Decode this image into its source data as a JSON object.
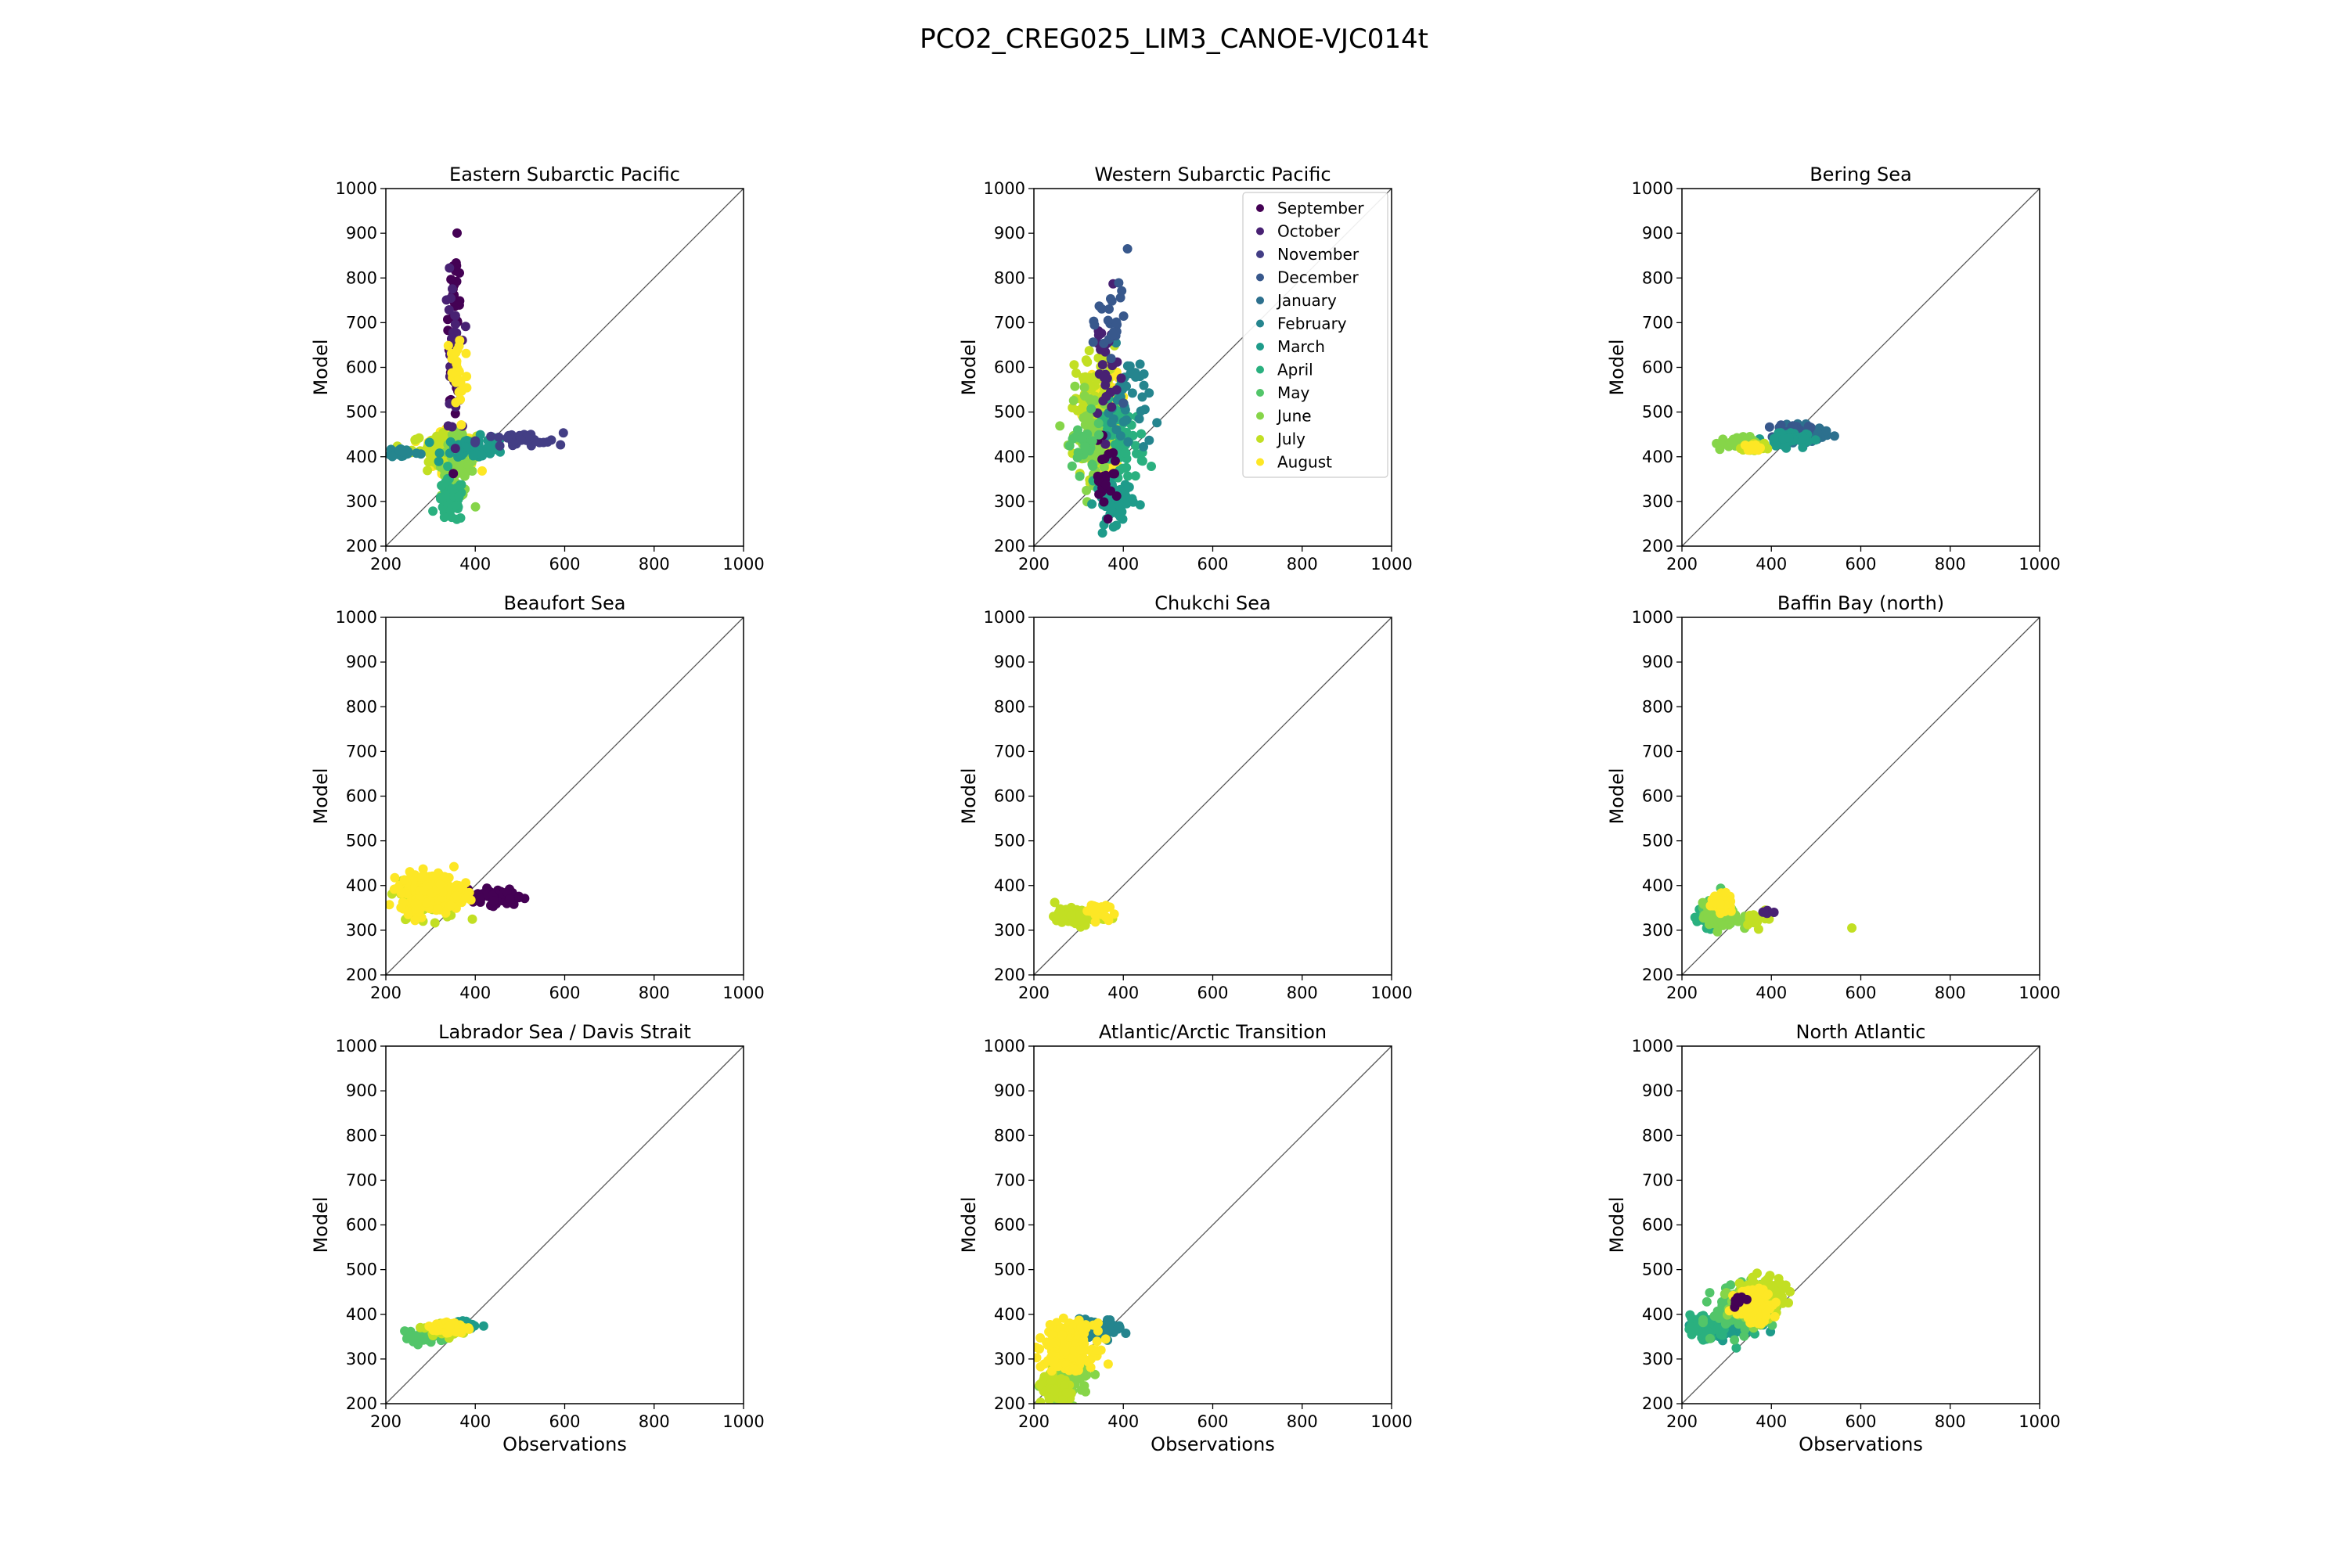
{
  "figure": {
    "title": "PCO2_CREG025_LIM3_CANOE-VJC014t"
  },
  "legend": {
    "entries": [
      "September",
      "October",
      "November",
      "December",
      "January",
      "February",
      "March",
      "April",
      "May",
      "June",
      "July",
      "August"
    ],
    "colors": [
      "#440154",
      "#481a6c",
      "#472f7d",
      "#414487",
      "#39568c",
      "#31688e",
      "#2a788e",
      "#23888e",
      "#1f988b",
      "#22a884",
      "#35b779",
      "#54c568"
    ]
  },
  "colors": {
    "September": "#440154",
    "October": "#482173",
    "November": "#433e85",
    "December": "#38588c",
    "January": "#2d708e",
    "February": "#25858e",
    "March": "#1e9b8a",
    "April": "#2ab07f",
    "May": "#52c569",
    "June": "#86d549",
    "July": "#c2df23",
    "August": "#fde725"
  },
  "chart_data": [
    {
      "type": "scatter",
      "title": "Eastern Subarctic Pacific",
      "xlabel": "",
      "ylabel": "Model",
      "xlim": [
        200,
        1000
      ],
      "ylim": [
        200,
        1000
      ],
      "xticks": [
        200,
        400,
        600,
        800,
        1000
      ],
      "yticks": [
        200,
        300,
        400,
        500,
        600,
        700,
        800,
        900,
        1000
      ],
      "reference_line": "y = x",
      "clusters": [
        {
          "series": "August",
          "center": [
            350,
            410
          ],
          "spread": [
            40,
            35
          ],
          "n": 200
        },
        {
          "series": "July",
          "center": [
            330,
            420
          ],
          "spread": [
            60,
            25
          ],
          "n": 90
        },
        {
          "series": "June",
          "center": [
            360,
            380
          ],
          "spread": [
            30,
            60
          ],
          "n": 70
        },
        {
          "series": "April",
          "center": [
            345,
            300
          ],
          "spread": [
            25,
            40
          ],
          "n": 60
        },
        {
          "series": "March",
          "center": [
            400,
            420
          ],
          "spread": [
            60,
            20
          ],
          "n": 60
        },
        {
          "series": "September",
          "center": [
            355,
            700
          ],
          "spread": [
            12,
            140
          ],
          "n": 50
        },
        {
          "series": "October",
          "center": [
            350,
            620
          ],
          "spread": [
            15,
            150
          ],
          "n": 40
        },
        {
          "series": "November",
          "center": [
            500,
            435
          ],
          "spread": [
            80,
            15
          ],
          "n": 30
        },
        {
          "series": "August",
          "center": [
            360,
            580
          ],
          "spread": [
            20,
            100
          ],
          "n": 30
        },
        {
          "series": "February",
          "center": [
            240,
            410
          ],
          "spread": [
            30,
            10
          ],
          "n": 20
        }
      ]
    },
    {
      "type": "scatter",
      "title": "Western Subarctic Pacific",
      "xlabel": "",
      "ylabel": "Model",
      "xlim": [
        200,
        1000
      ],
      "ylim": [
        200,
        1000
      ],
      "xticks": [
        200,
        400,
        600,
        800,
        1000
      ],
      "yticks": [
        200,
        300,
        400,
        500,
        600,
        700,
        800,
        900,
        1000
      ],
      "reference_line": "y = x",
      "legend": "top-right",
      "clusters": [
        {
          "series": "August",
          "center": [
            360,
            480
          ],
          "spread": [
            30,
            90
          ],
          "n": 200
        },
        {
          "series": "July",
          "center": [
            340,
            500
          ],
          "spread": [
            40,
            120
          ],
          "n": 110
        },
        {
          "series": "June",
          "center": [
            330,
            450
          ],
          "spread": [
            40,
            80
          ],
          "n": 80
        },
        {
          "series": "April",
          "center": [
            400,
            430
          ],
          "spread": [
            40,
            80
          ],
          "n": 70
        },
        {
          "series": "March",
          "center": [
            380,
            300
          ],
          "spread": [
            35,
            40
          ],
          "n": 60
        },
        {
          "series": "February",
          "center": [
            410,
            520
          ],
          "spread": [
            40,
            100
          ],
          "n": 40
        },
        {
          "series": "October",
          "center": [
            360,
            600
          ],
          "spread": [
            25,
            120
          ],
          "n": 30
        },
        {
          "series": "September",
          "center": [
            360,
            350
          ],
          "spread": [
            25,
            60
          ],
          "n": 25
        },
        {
          "series": "December",
          "center": [
            380,
            700
          ],
          "spread": [
            30,
            120
          ],
          "n": 25
        },
        {
          "series": "May",
          "center": [
            310,
            420
          ],
          "spread": [
            35,
            50
          ],
          "n": 30
        }
      ]
    },
    {
      "type": "scatter",
      "title": "Bering Sea",
      "xlabel": "",
      "ylabel": "Model",
      "xlim": [
        200,
        1000
      ],
      "ylim": [
        200,
        1000
      ],
      "xticks": [
        200,
        400,
        600,
        800,
        1000
      ],
      "yticks": [
        200,
        300,
        400,
        500,
        600,
        700,
        800,
        900,
        1000
      ],
      "reference_line": "y = x",
      "clusters": [
        {
          "series": "January",
          "center": [
            470,
            450
          ],
          "spread": [
            40,
            15
          ],
          "n": 80
        },
        {
          "series": "December",
          "center": [
            450,
            455
          ],
          "spread": [
            30,
            15
          ],
          "n": 60
        },
        {
          "series": "March",
          "center": [
            430,
            440
          ],
          "spread": [
            40,
            15
          ],
          "n": 50
        },
        {
          "series": "June",
          "center": [
            320,
            430
          ],
          "spread": [
            40,
            12
          ],
          "n": 30
        },
        {
          "series": "July",
          "center": [
            360,
            420
          ],
          "spread": [
            20,
            8
          ],
          "n": 30
        },
        {
          "series": "August",
          "center": [
            360,
            420
          ],
          "spread": [
            12,
            6
          ],
          "n": 30
        }
      ]
    },
    {
      "type": "scatter",
      "title": "Beaufort Sea",
      "xlabel": "",
      "ylabel": "Model",
      "xlim": [
        200,
        1000
      ],
      "ylim": [
        200,
        1000
      ],
      "xticks": [
        200,
        400,
        600,
        800,
        1000
      ],
      "yticks": [
        200,
        300,
        400,
        500,
        600,
        700,
        800,
        900,
        1000
      ],
      "reference_line": "y = x",
      "clusters": [
        {
          "series": "September",
          "center": [
            450,
            375
          ],
          "spread": [
            45,
            15
          ],
          "n": 70
        },
        {
          "series": "July",
          "center": [
            300,
            370
          ],
          "spread": [
            55,
            35
          ],
          "n": 120
        },
        {
          "series": "August",
          "center": [
            300,
            385
          ],
          "spread": [
            55,
            35
          ],
          "n": 300
        }
      ]
    },
    {
      "type": "scatter",
      "title": "Chukchi Sea",
      "xlabel": "",
      "ylabel": "Model",
      "xlim": [
        200,
        1000
      ],
      "ylim": [
        200,
        1000
      ],
      "xticks": [
        200,
        400,
        600,
        800,
        1000
      ],
      "yticks": [
        200,
        300,
        400,
        500,
        600,
        700,
        800,
        900,
        1000
      ],
      "reference_line": "y = x",
      "clusters": [
        {
          "series": "July",
          "center": [
            300,
            330
          ],
          "spread": [
            45,
            15
          ],
          "n": 80
        },
        {
          "series": "August",
          "center": [
            340,
            345
          ],
          "spread": [
            20,
            15
          ],
          "n": 30
        }
      ]
    },
    {
      "type": "scatter",
      "title": "Baffin Bay (north)",
      "xlabel": "",
      "ylabel": "Model",
      "xlim": [
        200,
        1000
      ],
      "ylim": [
        200,
        1000
      ],
      "xticks": [
        200,
        400,
        600,
        800,
        1000
      ],
      "yticks": [
        200,
        300,
        400,
        500,
        600,
        700,
        800,
        900,
        1000
      ],
      "reference_line": "y = x",
      "clusters": [
        {
          "series": "April",
          "center": [
            270,
            330
          ],
          "spread": [
            30,
            20
          ],
          "n": 60
        },
        {
          "series": "May",
          "center": [
            280,
            340
          ],
          "spread": [
            30,
            25
          ],
          "n": 60
        },
        {
          "series": "June",
          "center": [
            290,
            330
          ],
          "spread": [
            35,
            25
          ],
          "n": 60
        },
        {
          "series": "August",
          "center": [
            290,
            360
          ],
          "spread": [
            20,
            18
          ],
          "n": 60
        },
        {
          "series": "July",
          "center": [
            370,
            330
          ],
          "spread": [
            25,
            15
          ],
          "n": 15
        },
        {
          "series": "October",
          "center": [
            390,
            340
          ],
          "spread": [
            15,
            5
          ],
          "n": 6
        }
      ],
      "points": [
        {
          "series": "July",
          "x": 580,
          "y": 305
        }
      ]
    },
    {
      "type": "scatter",
      "title": "Labrador Sea / Davis Strait",
      "xlabel": "Observations",
      "ylabel": "Model",
      "xlim": [
        200,
        1000
      ],
      "ylim": [
        200,
        1000
      ],
      "xticks": [
        200,
        400,
        600,
        800,
        1000
      ],
      "yticks": [
        200,
        300,
        400,
        500,
        600,
        700,
        800,
        900,
        1000
      ],
      "reference_line": "y = x",
      "clusters": [
        {
          "series": "March",
          "center": [
            380,
            375
          ],
          "spread": [
            25,
            8
          ],
          "n": 40
        },
        {
          "series": "May",
          "center": [
            290,
            350
          ],
          "spread": [
            40,
            15
          ],
          "n": 40
        },
        {
          "series": "July",
          "center": [
            330,
            365
          ],
          "spread": [
            30,
            10
          ],
          "n": 40
        },
        {
          "series": "August",
          "center": [
            340,
            370
          ],
          "spread": [
            30,
            10
          ],
          "n": 80
        }
      ]
    },
    {
      "type": "scatter",
      "title": "Atlantic/Arctic Transition",
      "xlabel": "Observations",
      "ylabel": "Model",
      "xlim": [
        200,
        1000
      ],
      "ylim": [
        200,
        1000
      ],
      "xticks": [
        200,
        400,
        600,
        800,
        1000
      ],
      "yticks": [
        200,
        300,
        400,
        500,
        600,
        700,
        800,
        900,
        1000
      ],
      "reference_line": "y = x",
      "clusters": [
        {
          "series": "February",
          "center": [
            350,
            370
          ],
          "spread": [
            40,
            15
          ],
          "n": 60
        },
        {
          "series": "June",
          "center": [
            280,
            260
          ],
          "spread": [
            40,
            40
          ],
          "n": 100
        },
        {
          "series": "July",
          "center": [
            250,
            230
          ],
          "spread": [
            35,
            25
          ],
          "n": 80
        },
        {
          "series": "August",
          "center": [
            280,
            330
          ],
          "spread": [
            45,
            40
          ],
          "n": 250
        }
      ]
    },
    {
      "type": "scatter",
      "title": "North Atlantic",
      "xlabel": "Observations",
      "ylabel": "Model",
      "xlim": [
        200,
        1000
      ],
      "ylim": [
        200,
        1000
      ],
      "xticks": [
        200,
        400,
        600,
        800,
        1000
      ],
      "yticks": [
        200,
        300,
        400,
        500,
        600,
        700,
        800,
        900,
        1000
      ],
      "reference_line": "y = x",
      "clusters": [
        {
          "series": "March",
          "center": [
            300,
            370
          ],
          "spread": [
            60,
            20
          ],
          "n": 80
        },
        {
          "series": "April",
          "center": [
            260,
            370
          ],
          "spread": [
            40,
            25
          ],
          "n": 60
        },
        {
          "series": "May",
          "center": [
            330,
            410
          ],
          "spread": [
            50,
            40
          ],
          "n": 100
        },
        {
          "series": "June",
          "center": [
            350,
            420
          ],
          "spread": [
            40,
            35
          ],
          "n": 100
        },
        {
          "series": "July",
          "center": [
            380,
            440
          ],
          "spread": [
            40,
            35
          ],
          "n": 100
        },
        {
          "series": "August",
          "center": [
            360,
            420
          ],
          "spread": [
            35,
            30
          ],
          "n": 120
        },
        {
          "series": "September",
          "center": [
            330,
            430
          ],
          "spread": [
            15,
            10
          ],
          "n": 10
        }
      ]
    }
  ]
}
